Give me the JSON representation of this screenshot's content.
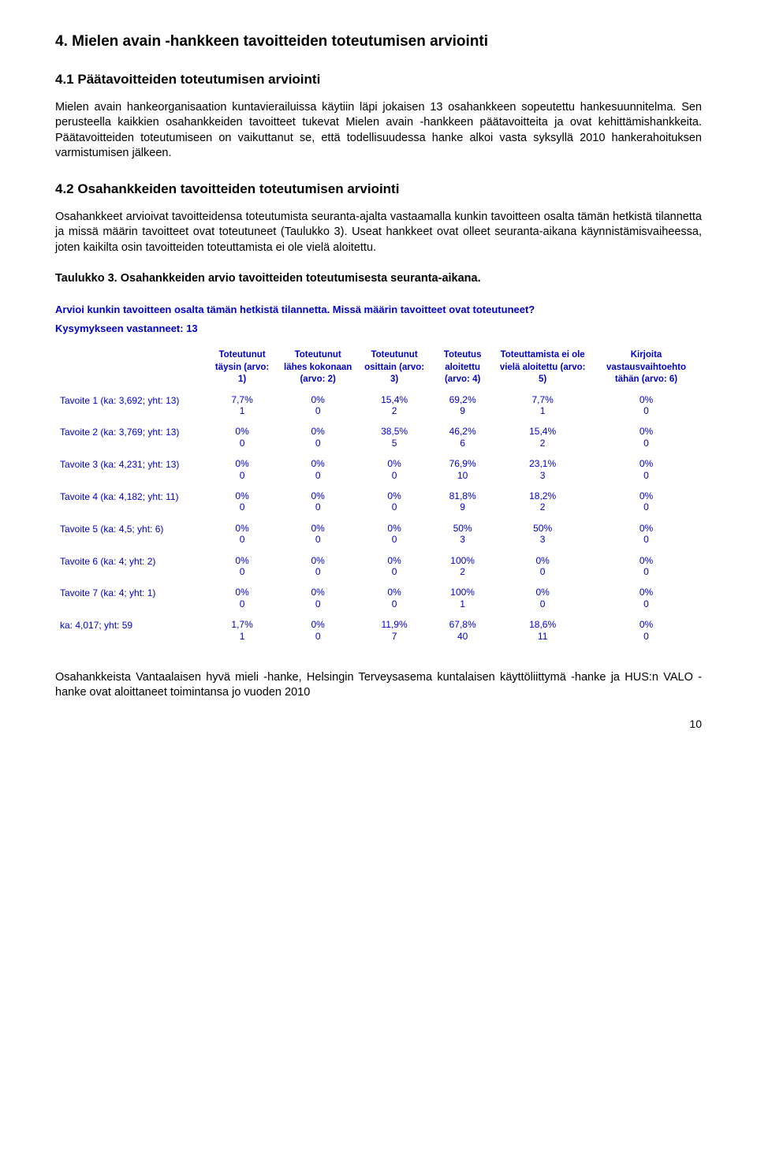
{
  "headings": {
    "h2": "4. Mielen avain -hankkeen tavoitteiden toteutumisen arviointi",
    "h3a": "4.1 Päätavoitteiden toteutumisen arviointi",
    "h3b": "4.2 Osahankkeiden tavoitteiden toteutumisen arviointi"
  },
  "paragraphs": {
    "p1": "Mielen avain hankeorganisaation kuntavierailuissa käytiin läpi jokaisen 13 osahankkeen sopeutettu hankesuunnitelma. Sen perusteella kaikkien osahankkeiden tavoitteet tukevat Mielen avain -hankkeen päätavoitteita ja ovat kehittämishankkeita. Päätavoitteiden toteutumiseen on vaikuttanut se, että todellisuudessa hanke alkoi vasta syksyllä 2010 hankerahoituksen varmistumisen jälkeen.",
    "p2": "Osahankkeet arvioivat tavoitteidensa toteutumista seuranta-ajalta vastaamalla kunkin tavoitteen osalta tämän hetkistä tilannetta ja missä määrin tavoitteet ovat toteutuneet (Taulukko 3). Useat hankkeet ovat olleet seuranta-aikana käynnistämisvaiheessa, joten kaikilta osin tavoitteiden toteuttamista ei ole vielä aloitettu.",
    "table_caption": "Taulukko 3. Osahankkeiden arvio tavoitteiden toteutumisesta seuranta-aikana.",
    "p3": "Osahankkeista Vantaalaisen hyvä mieli -hanke, Helsingin Terveysasema kuntalaisen käyttöliittymä -hanke ja HUS:n VALO -hanke ovat aloittaneet toimintansa jo vuoden 2010"
  },
  "blue": {
    "question": "Arvioi kunkin tavoitteen osalta tämän hetkistä tilannetta. Missä määrin tavoitteet ovat toteutuneet?",
    "responded": "Kysymykseen vastanneet: 13"
  },
  "table": {
    "columns": [
      "",
      "Toteutunut täysin (arvo: 1)",
      "Toteutunut lähes kokonaan (arvo: 2)",
      "Toteutunut osittain (arvo: 3)",
      "Toteutus aloitettu (arvo: 4)",
      "Toteuttamista ei ole vielä aloitettu (arvo: 5)",
      "Kirjoita vastausvaihtoehto tähän (arvo: 6)"
    ],
    "rows": [
      {
        "label": "Tavoite 1 (ka: 3,692; yht: 13)",
        "cells": [
          [
            "7,7%",
            "1"
          ],
          [
            "0%",
            "0"
          ],
          [
            "15,4%",
            "2"
          ],
          [
            "69,2%",
            "9"
          ],
          [
            "7,7%",
            "1"
          ],
          [
            "0%",
            "0"
          ]
        ]
      },
      {
        "label": "Tavoite 2 (ka: 3,769; yht: 13)",
        "cells": [
          [
            "0%",
            "0"
          ],
          [
            "0%",
            "0"
          ],
          [
            "38,5%",
            "5"
          ],
          [
            "46,2%",
            "6"
          ],
          [
            "15,4%",
            "2"
          ],
          [
            "0%",
            "0"
          ]
        ]
      },
      {
        "label": "Tavoite 3 (ka: 4,231; yht: 13)",
        "cells": [
          [
            "0%",
            "0"
          ],
          [
            "0%",
            "0"
          ],
          [
            "0%",
            "0"
          ],
          [
            "76,9%",
            "10"
          ],
          [
            "23,1%",
            "3"
          ],
          [
            "0%",
            "0"
          ]
        ]
      },
      {
        "label": "Tavoite 4 (ka: 4,182; yht: 11)",
        "cells": [
          [
            "0%",
            "0"
          ],
          [
            "0%",
            "0"
          ],
          [
            "0%",
            "0"
          ],
          [
            "81,8%",
            "9"
          ],
          [
            "18,2%",
            "2"
          ],
          [
            "0%",
            "0"
          ]
        ]
      },
      {
        "label": "Tavoite 5 (ka: 4,5; yht: 6)",
        "cells": [
          [
            "0%",
            "0"
          ],
          [
            "0%",
            "0"
          ],
          [
            "0%",
            "0"
          ],
          [
            "50%",
            "3"
          ],
          [
            "50%",
            "3"
          ],
          [
            "0%",
            "0"
          ]
        ]
      },
      {
        "label": "Tavoite 6 (ka: 4; yht: 2)",
        "cells": [
          [
            "0%",
            "0"
          ],
          [
            "0%",
            "0"
          ],
          [
            "0%",
            "0"
          ],
          [
            "100%",
            "2"
          ],
          [
            "0%",
            "0"
          ],
          [
            "0%",
            "0"
          ]
        ]
      },
      {
        "label": "Tavoite 7 (ka: 4; yht: 1)",
        "cells": [
          [
            "0%",
            "0"
          ],
          [
            "0%",
            "0"
          ],
          [
            "0%",
            "0"
          ],
          [
            "100%",
            "1"
          ],
          [
            "0%",
            "0"
          ],
          [
            "0%",
            "0"
          ]
        ]
      },
      {
        "label": "ka: 4,017; yht: 59",
        "cells": [
          [
            "1,7%",
            "1"
          ],
          [
            "0%",
            "0"
          ],
          [
            "11,9%",
            "7"
          ],
          [
            "67,8%",
            "40"
          ],
          [
            "18,6%",
            "11"
          ],
          [
            "0%",
            "0"
          ]
        ]
      }
    ]
  },
  "page_number": "10"
}
